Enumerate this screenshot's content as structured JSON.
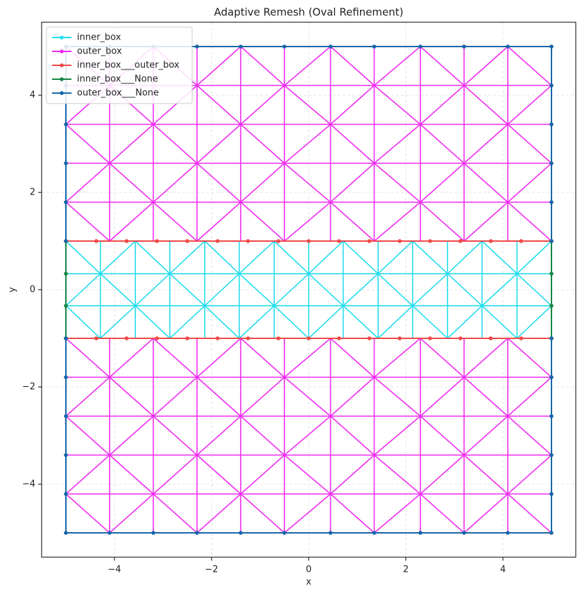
{
  "chart_data": {
    "type": "mesh",
    "title": "Adaptive Remesh (Oval Refinement)",
    "x_label": "x",
    "y_label": "y",
    "xlim": [
      -5.5,
      5.5
    ],
    "ylim": [
      -5.5,
      5.5
    ],
    "xticks": [
      {
        "value": -4,
        "label": "−4"
      },
      {
        "value": -2,
        "label": "−2"
      },
      0,
      2,
      4
    ],
    "yticks": [
      {
        "value": -4,
        "label": "−4"
      },
      {
        "value": -2,
        "label": "−2"
      },
      0,
      2,
      4
    ],
    "grid": true,
    "legend": "upper left",
    "series": [
      {
        "name": "inner_box",
        "color": "#22dded",
        "blocks": [
          {
            "rows": [
              -1,
              -0.33,
              0.33,
              1
            ],
            "cols": [
              -5,
              -4.29,
              -3.57,
              -2.86,
              -2.14,
              -1.43,
              -0.71,
              0,
              0.71,
              1.43,
              2.14,
              2.86,
              3.57,
              4.29,
              5
            ]
          }
        ]
      },
      {
        "name": "outer_box",
        "color": "#f22cf2",
        "blocks": [
          {
            "rows": [
              1,
              1.8,
              2.6,
              3.4,
              4.2,
              5
            ],
            "cols": [
              -5,
              -4.1,
              -3.2,
              -2.3,
              -1.4,
              -0.5,
              0.45,
              1.35,
              2.3,
              3.2,
              4.1,
              5
            ]
          },
          {
            "rows": [
              -5,
              -4.2,
              -3.4,
              -2.6,
              -1.8,
              -1
            ],
            "cols": [
              -5,
              -4.1,
              -3.2,
              -2.3,
              -1.4,
              -0.5,
              0.45,
              1.35,
              2.3,
              3.2,
              4.1,
              5
            ]
          }
        ]
      },
      {
        "name": "inner_box___outer_box",
        "color": "#f04848",
        "x": [
          -5,
          -4.375,
          -3.75,
          -3.125,
          -2.5,
          -1.875,
          -1.25,
          -0.625,
          0,
          0.625,
          1.25,
          1.875,
          2.5,
          3.125,
          3.75,
          4.375,
          5,
          null,
          -5,
          -4.375,
          -3.75,
          -3.125,
          -2.5,
          -1.875,
          -1.25,
          -0.625,
          0,
          0.625,
          1.25,
          1.875,
          2.5,
          3.125,
          3.75,
          4.375,
          5
        ],
        "y": [
          1,
          1,
          1,
          1,
          1,
          1,
          1,
          1,
          1,
          1,
          1,
          1,
          1,
          1,
          1,
          1,
          1,
          null,
          -1,
          -1,
          -1,
          -1,
          -1,
          -1,
          -1,
          -1,
          -1,
          -1,
          -1,
          -1,
          -1,
          -1,
          -1,
          -1,
          -1
        ]
      },
      {
        "name": "inner_box___None",
        "color": "#138544",
        "x": [
          -5,
          -5,
          -5,
          -5,
          null,
          5,
          5,
          5,
          5
        ],
        "y": [
          -1,
          -0.33,
          0.33,
          1,
          null,
          -1,
          -0.33,
          0.33,
          1
        ]
      },
      {
        "name": "outer_box___None",
        "color": "#1565a8",
        "x": [
          -5,
          -5,
          -5,
          -5,
          -5,
          -5,
          -4.1,
          -3.2,
          -2.3,
          -1.4,
          -0.5,
          0.45,
          1.35,
          2.3,
          3.2,
          4.1,
          5,
          5,
          5,
          5,
          5,
          5,
          null,
          -5,
          -5,
          -5,
          -5,
          -5,
          -5,
          -4.1,
          -3.2,
          -2.3,
          -1.4,
          -0.5,
          0.45,
          1.35,
          2.3,
          3.2,
          4.1,
          5,
          5,
          5,
          5,
          5,
          5
        ],
        "y": [
          1,
          1.8,
          2.6,
          3.4,
          4.2,
          5,
          5,
          5,
          5,
          5,
          5,
          5,
          5,
          5,
          5,
          5,
          5,
          4.2,
          3.4,
          2.6,
          1.8,
          1,
          null,
          -1,
          -1.8,
          -2.6,
          -3.4,
          -4.2,
          -5,
          -5,
          -5,
          -5,
          -5,
          -5,
          -5,
          -5,
          -5,
          -5,
          -5,
          -5,
          -4.2,
          -3.4,
          -2.6,
          -1.8,
          -1
        ]
      }
    ]
  }
}
